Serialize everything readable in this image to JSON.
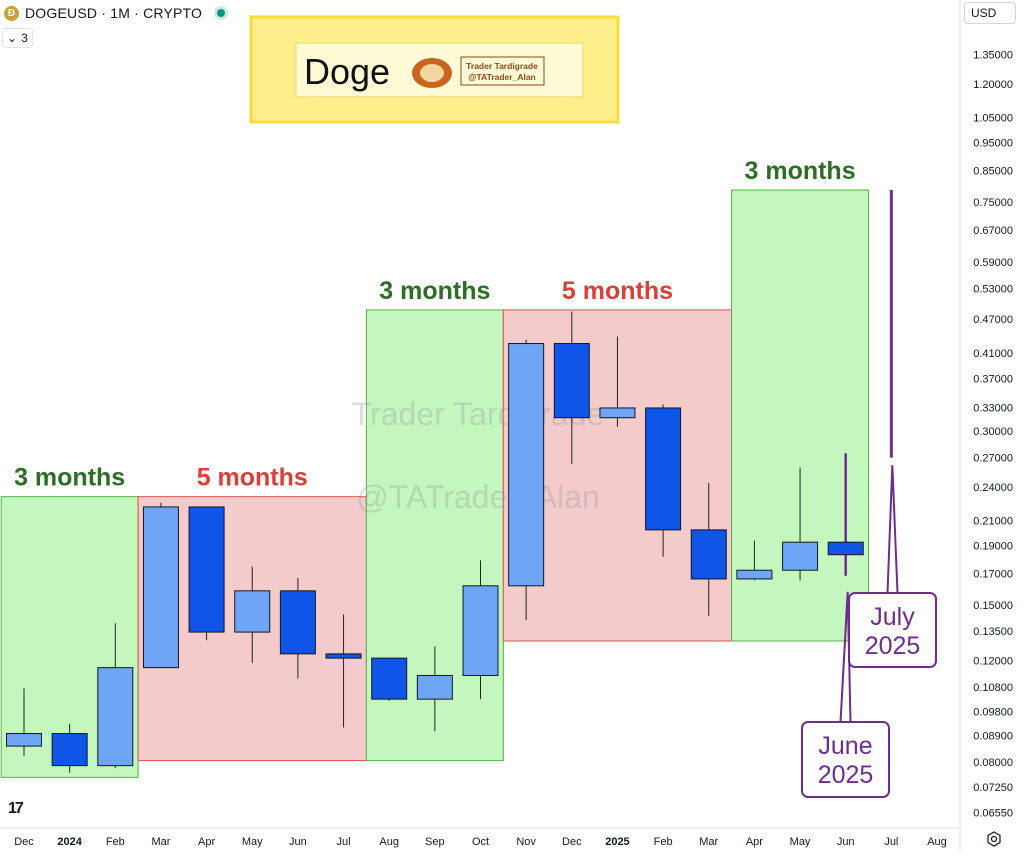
{
  "header": {
    "coin_icon_letter": "Ð",
    "symbol_title": "DOGEUSD · 1M · CRYPTO",
    "indicator_toggle_label": "3",
    "currency_label": "USD",
    "tv_logo": "17"
  },
  "colors": {
    "up_candle": "#6ea6f5",
    "down_candle": "#0f55e8",
    "wick": "#222222",
    "green_zone": "#c3f7be",
    "red_zone": "#f3cbcb",
    "green_text": "#2e6e24",
    "red_text": "#d8403a",
    "purple": "#6e2c8f",
    "banner_yellow": "#ffef8a",
    "banner_border": "#f4dc3c"
  },
  "banner": {
    "title": "Doge",
    "author": "Trader Tardigrade",
    "handle": "@TATrader_Alan"
  },
  "watermark": {
    "line1": "Trader Tardigrade",
    "line2": "@TATrader_Alan"
  },
  "chart_data": {
    "type": "candlestick",
    "scale": "log",
    "ylim": [
      0.063,
      1.55
    ],
    "y_axis_ticks": [
      "1.35000",
      "1.20000",
      "1.05000",
      "0.95000",
      "0.85000",
      "0.75000",
      "0.67000",
      "0.59000",
      "0.53000",
      "0.47000",
      "0.41000",
      "0.37000",
      "0.33000",
      "0.30000",
      "0.27000",
      "0.24000",
      "0.21000",
      "0.19000",
      "0.17000",
      "0.15000",
      "0.13500",
      "0.12000",
      "0.10800",
      "0.09800",
      "0.08900",
      "0.08000",
      "0.07250",
      "0.06550"
    ],
    "x_axis_labels": [
      {
        "label": "Dec",
        "bold": false
      },
      {
        "label": "2024",
        "bold": true
      },
      {
        "label": "Feb",
        "bold": false
      },
      {
        "label": "Mar",
        "bold": false
      },
      {
        "label": "Apr",
        "bold": false
      },
      {
        "label": "May",
        "bold": false
      },
      {
        "label": "Jun",
        "bold": false
      },
      {
        "label": "Jul",
        "bold": false
      },
      {
        "label": "Aug",
        "bold": false
      },
      {
        "label": "Sep",
        "bold": false
      },
      {
        "label": "Oct",
        "bold": false
      },
      {
        "label": "Nov",
        "bold": false
      },
      {
        "label": "Dec",
        "bold": false
      },
      {
        "label": "2025",
        "bold": true
      },
      {
        "label": "Feb",
        "bold": false
      },
      {
        "label": "Mar",
        "bold": false
      },
      {
        "label": "Apr",
        "bold": false
      },
      {
        "label": "May",
        "bold": false
      },
      {
        "label": "Jun",
        "bold": false
      },
      {
        "label": "Jul",
        "bold": false
      },
      {
        "label": "Aug",
        "bold": false
      }
    ],
    "candles": [
      {
        "month": "Dec 2023",
        "open": 0.0853,
        "high": 0.1075,
        "low": 0.082,
        "close": 0.0897
      },
      {
        "month": "Jan 2024",
        "open": 0.0897,
        "high": 0.0932,
        "low": 0.0767,
        "close": 0.0789
      },
      {
        "month": "Feb 2024",
        "open": 0.0789,
        "high": 0.1393,
        "low": 0.0781,
        "close": 0.1167
      },
      {
        "month": "Mar 2024",
        "open": 0.1167,
        "high": 0.2255,
        "low": 0.1167,
        "close": 0.2217
      },
      {
        "month": "Apr 2024",
        "open": 0.2217,
        "high": 0.2217,
        "low": 0.1302,
        "close": 0.1345
      },
      {
        "month": "May 2024",
        "open": 0.1345,
        "high": 0.1747,
        "low": 0.1189,
        "close": 0.1586
      },
      {
        "month": "Jun 2024",
        "open": 0.1586,
        "high": 0.1669,
        "low": 0.1117,
        "close": 0.1233
      },
      {
        "month": "Jul 2024",
        "open": 0.1233,
        "high": 0.1443,
        "low": 0.0919,
        "close": 0.1212
      },
      {
        "month": "Aug 2024",
        "open": 0.1212,
        "high": 0.1212,
        "low": 0.1023,
        "close": 0.1029
      },
      {
        "month": "Sep 2024",
        "open": 0.1029,
        "high": 0.127,
        "low": 0.0905,
        "close": 0.1131
      },
      {
        "month": "Oct 2024",
        "open": 0.1131,
        "high": 0.1791,
        "low": 0.1029,
        "close": 0.1618
      },
      {
        "month": "Nov 2024",
        "open": 0.1618,
        "high": 0.4323,
        "low": 0.1411,
        "close": 0.4258
      },
      {
        "month": "Dec 2024",
        "open": 0.4258,
        "high": 0.4839,
        "low": 0.2632,
        "close": 0.3166
      },
      {
        "month": "Jan 2025",
        "open": 0.3166,
        "high": 0.4379,
        "low": 0.3053,
        "close": 0.3292
      },
      {
        "month": "Feb 2025",
        "open": 0.3292,
        "high": 0.3338,
        "low": 0.1817,
        "close": 0.2023
      },
      {
        "month": "Mar 2025",
        "open": 0.2023,
        "high": 0.2439,
        "low": 0.1436,
        "close": 0.1663
      },
      {
        "month": "Apr 2025",
        "open": 0.1663,
        "high": 0.1938,
        "low": 0.1655,
        "close": 0.1722
      },
      {
        "month": "May 2025",
        "open": 0.1722,
        "high": 0.2596,
        "low": 0.1652,
        "close": 0.1926
      },
      {
        "month": "Jun 2025",
        "open": 0.1926,
        "high": 0.2747,
        "low": 0.1684,
        "close": 0.1832
      },
      {
        "month": "Jul 2025",
        "open": 0.27,
        "high": 0.786,
        "low": 0.27,
        "close": 0.786
      }
    ],
    "zones": [
      {
        "label": "3 months",
        "color": "green",
        "start": "Dec 2023",
        "end": "Feb 2024",
        "top": 0.231,
        "bottom": 0.0753
      },
      {
        "label": "5 months",
        "color": "red",
        "start": "Mar 2024",
        "end": "Jul 2024",
        "top": 0.231,
        "bottom": 0.0805
      },
      {
        "label": "3 months",
        "color": "green",
        "start": "Aug 2024",
        "end": "Oct 2024",
        "top": 0.487,
        "bottom": 0.0805
      },
      {
        "label": "5 months",
        "color": "red",
        "start": "Nov 2024",
        "end": "Mar 2025",
        "top": 0.487,
        "bottom": 0.1298
      },
      {
        "label": "3 months",
        "color": "green",
        "start": "Apr 2025",
        "end": "Jun 2025",
        "top": 0.786,
        "bottom": 0.1298
      }
    ],
    "callouts": [
      {
        "line1": "June",
        "line2": "2025"
      },
      {
        "line1": "July",
        "line2": "2025"
      }
    ]
  }
}
